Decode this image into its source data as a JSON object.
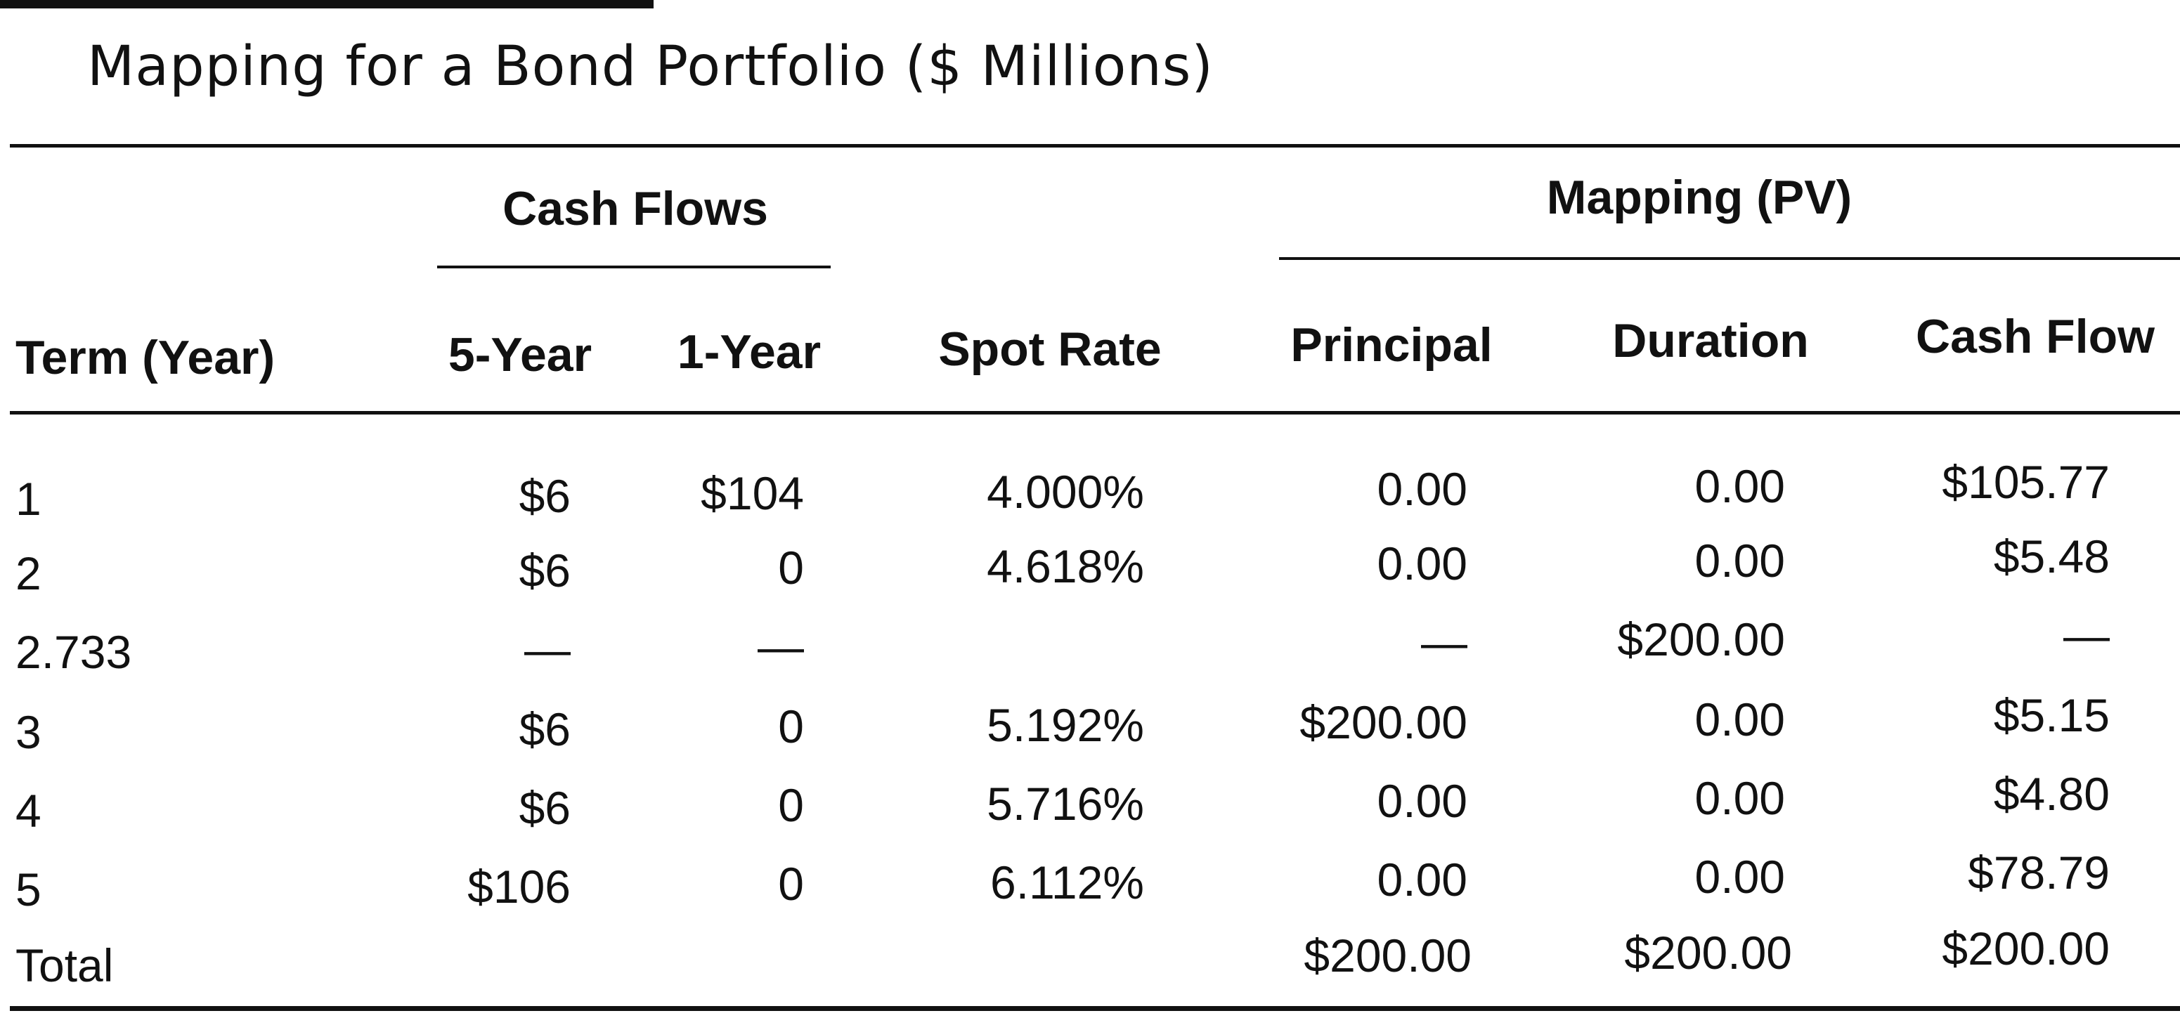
{
  "title": "Mapping for a Bond Portfolio ($ Millions)",
  "group_headers": {
    "cash_flows": "Cash Flows",
    "mapping": "Mapping (PV)"
  },
  "columns": {
    "term": "Term (Year)",
    "five_year": "5-Year",
    "one_year": "1-Year",
    "spot_rate": "Spot Rate",
    "principal": "Principal",
    "duration": "Duration",
    "cash_flow": "Cash Flow"
  },
  "rows": [
    {
      "term": "1",
      "five_year": "$6",
      "one_year": "$104",
      "spot_rate": "4.000%",
      "principal": "0.00",
      "duration": "0.00",
      "cash_flow": "$105.77"
    },
    {
      "term": "2",
      "five_year": "$6",
      "one_year": "0",
      "spot_rate": "4.618%",
      "principal": "0.00",
      "duration": "0.00",
      "cash_flow": "$5.48"
    },
    {
      "term": "2.733",
      "five_year": "—",
      "one_year": "—",
      "spot_rate": "",
      "principal": "—",
      "duration": "$200.00",
      "cash_flow": "—"
    },
    {
      "term": "3",
      "five_year": "$6",
      "one_year": "0",
      "spot_rate": "5.192%",
      "principal": "$200.00",
      "duration": "0.00",
      "cash_flow": "$5.15"
    },
    {
      "term": "4",
      "five_year": "$6",
      "one_year": "0",
      "spot_rate": "5.716%",
      "principal": "0.00",
      "duration": "0.00",
      "cash_flow": "$4.80"
    },
    {
      "term": "5",
      "five_year": "$106",
      "one_year": "0",
      "spot_rate": "6.112%",
      "principal": "0.00",
      "duration": "0.00",
      "cash_flow": "$78.79"
    },
    {
      "term": "Total",
      "five_year": "",
      "one_year": "",
      "spot_rate": "",
      "principal": "$200.00",
      "duration": "$200.00",
      "cash_flow": "$200.00"
    }
  ]
}
